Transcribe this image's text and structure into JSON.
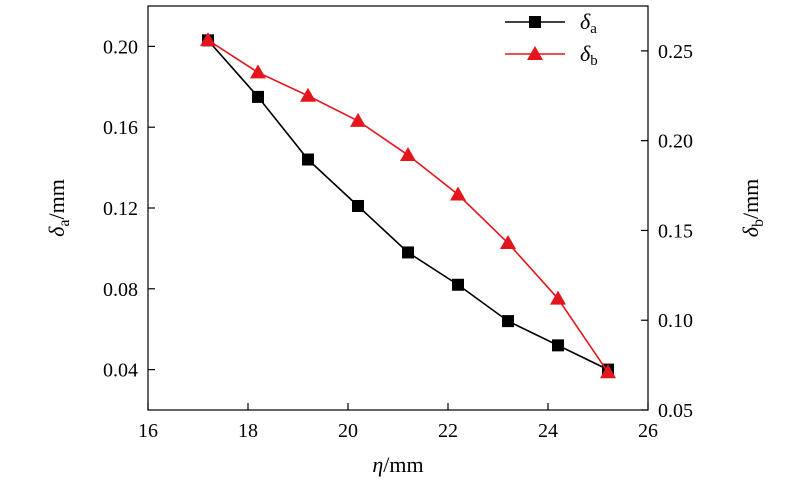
{
  "chart_data": {
    "type": "line",
    "x": [
      17.2,
      18.2,
      19.2,
      20.2,
      21.2,
      22.2,
      23.2,
      24.2,
      25.2
    ],
    "xlim": [
      16,
      26
    ],
    "xticks": [
      16,
      18,
      20,
      22,
      24,
      26
    ],
    "xlabel": {
      "symbol": "η",
      "unit": "/mm"
    },
    "y_left": {
      "label": {
        "symbol": "δ",
        "sub": "a",
        "unit": "/mm"
      },
      "lim": [
        0.02,
        0.22
      ],
      "ticks": [
        0.04,
        0.08,
        0.12,
        0.16,
        0.2
      ],
      "tick_labels": [
        "0.04",
        "0.08",
        "0.12",
        "0.16",
        "0.20"
      ]
    },
    "y_right": {
      "label": {
        "symbol": "δ",
        "sub": "b",
        "unit": "/mm"
      },
      "lim": [
        0.05,
        0.275
      ],
      "ticks": [
        0.05,
        0.1,
        0.15,
        0.2,
        0.25
      ],
      "tick_labels": [
        "0.05",
        "0.10",
        "0.15",
        "0.20",
        "0.25"
      ]
    },
    "series": [
      {
        "name": {
          "symbol": "δ",
          "sub": "a"
        },
        "axis": "left",
        "marker": "square",
        "color": "#000000",
        "values": [
          0.203,
          0.175,
          0.144,
          0.121,
          0.098,
          0.082,
          0.064,
          0.052,
          0.04
        ]
      },
      {
        "name": {
          "symbol": "δ",
          "sub": "b"
        },
        "axis": "right",
        "marker": "triangle",
        "color": "#e3161e",
        "values": [
          0.256,
          0.238,
          0.225,
          0.211,
          0.192,
          0.17,
          0.143,
          0.112,
          0.071
        ]
      }
    ],
    "legend": "top-right",
    "grid": false
  }
}
